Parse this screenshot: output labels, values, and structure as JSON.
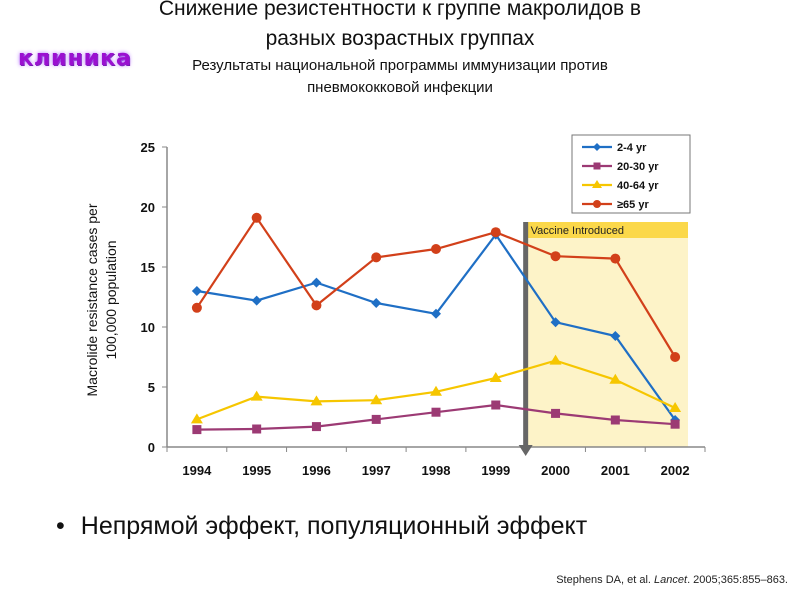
{
  "slide": {
    "title_line1": "Снижение резистентности к группе макролидов в",
    "title_line2": "разных возрастных группах",
    "subtitle_line1": "Результаты национальной программы иммунизации против",
    "subtitle_line2": "пневмококковой инфекции",
    "logo_text": "клиника",
    "bullet": "Непрямой эффект, популяционный эффект",
    "citation_authors": "Stephens DA, et al. ",
    "citation_journal": "Lancet",
    "citation_rest": ". 2005;365:855–863."
  },
  "chart_data": {
    "type": "line",
    "title": "",
    "xlabel": "",
    "ylabel": "Macrolide resistance cases per 100,000 population",
    "ylabel_line1": "Macrolide resistance cases per",
    "ylabel_line2": "100,000 population",
    "x": [
      "1994",
      "1995",
      "1996",
      "1997",
      "1998",
      "1999",
      "2000",
      "2001",
      "2002"
    ],
    "ylim": [
      0,
      25
    ],
    "yticks": [
      0,
      5,
      10,
      15,
      20,
      25
    ],
    "grid": false,
    "legend_position": "top-right",
    "annotation": {
      "label": "Vaccine Introduced",
      "x_start": "2000",
      "color": "#fdf3c8",
      "label_color": "#fbd84a"
    },
    "series": [
      {
        "name": "2-4 yr",
        "color": "#1f6fc5",
        "marker": "diamond",
        "values": [
          13.0,
          12.2,
          13.7,
          12.0,
          11.1,
          17.7,
          10.4,
          9.25,
          2.25
        ]
      },
      {
        "name": "20-30 yr",
        "color": "#9c3a74",
        "marker": "square",
        "values": [
          1.45,
          1.5,
          1.7,
          2.3,
          2.9,
          3.5,
          2.8,
          2.25,
          1.9
        ]
      },
      {
        "name": "40-64 yr",
        "color": "#f6c600",
        "marker": "triangle",
        "values": [
          2.3,
          4.2,
          3.8,
          3.9,
          4.6,
          5.75,
          7.2,
          5.6,
          3.25
        ]
      },
      {
        "name": "≥65 yr",
        "color": "#d2401a",
        "marker": "circle",
        "values": [
          11.6,
          19.1,
          11.8,
          15.8,
          16.5,
          17.9,
          15.9,
          15.7,
          7.5
        ]
      }
    ]
  }
}
